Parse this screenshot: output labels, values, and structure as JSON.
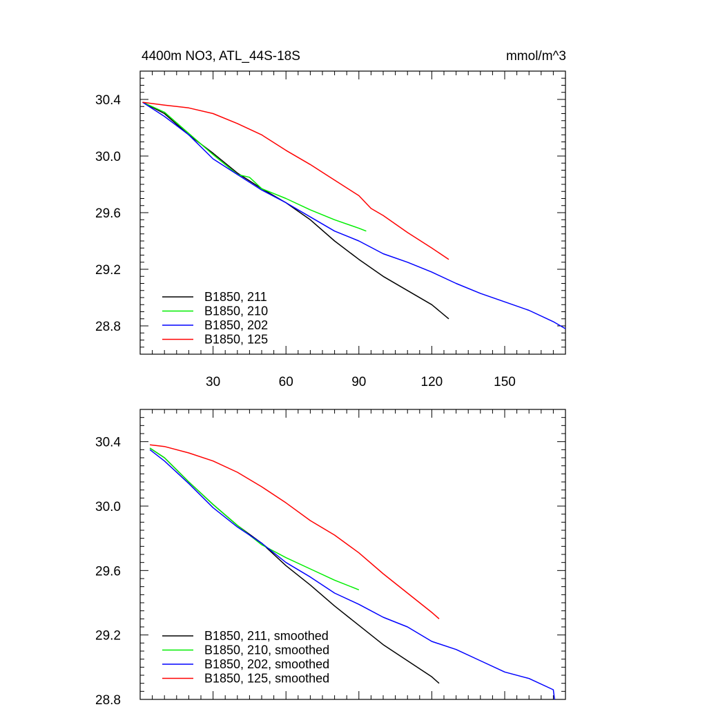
{
  "figure": {
    "title_left": "4400m NO3, ATL_44S-18S",
    "title_right": "mmol/m^3"
  },
  "chart_data": [
    {
      "type": "line",
      "title": "4400m NO3, ATL_44S-18S",
      "units": "mmol/m^3",
      "xlim": [
        0,
        175
      ],
      "ylim": [
        28.6,
        30.6
      ],
      "xticks": [
        30,
        60,
        90,
        120,
        150
      ],
      "yticks": [
        28.8,
        29.2,
        29.6,
        30.0,
        30.4
      ],
      "xtick_labels": [
        "30",
        "60",
        "90",
        "120",
        "150"
      ],
      "ytick_labels": [
        "28.8",
        "29.2",
        "29.6",
        "30.0",
        "30.4"
      ],
      "legend_position": "bottom-left",
      "series": [
        {
          "name": "B1850, 211",
          "color": "#000000",
          "x": [
            1,
            10,
            20,
            30,
            40,
            50,
            60,
            70,
            80,
            90,
            100,
            110,
            120,
            127
          ],
          "y": [
            30.38,
            30.3,
            30.15,
            30.02,
            29.88,
            29.77,
            29.67,
            29.55,
            29.4,
            29.27,
            29.15,
            29.05,
            28.95,
            28.85
          ]
        },
        {
          "name": "B1850, 210",
          "color": "#00ee00",
          "x": [
            1,
            10,
            20,
            30,
            40,
            45,
            50,
            60,
            70,
            80,
            90,
            93
          ],
          "y": [
            30.38,
            30.31,
            30.16,
            30.01,
            29.87,
            29.85,
            29.77,
            29.7,
            29.62,
            29.55,
            29.49,
            29.47
          ]
        },
        {
          "name": "B1850, 202",
          "color": "#0000ff",
          "x": [
            1,
            10,
            20,
            30,
            40,
            50,
            60,
            70,
            80,
            90,
            100,
            110,
            120,
            130,
            140,
            150,
            160,
            170,
            175
          ],
          "y": [
            30.38,
            30.28,
            30.15,
            29.98,
            29.87,
            29.76,
            29.67,
            29.57,
            29.47,
            29.4,
            29.31,
            29.25,
            29.18,
            29.1,
            29.03,
            28.97,
            28.91,
            28.83,
            28.78
          ]
        },
        {
          "name": "B1850, 125",
          "color": "#ff0000",
          "x": [
            1,
            10,
            20,
            30,
            40,
            50,
            60,
            70,
            80,
            90,
            95,
            100,
            110,
            120,
            127
          ],
          "y": [
            30.38,
            30.36,
            30.34,
            30.3,
            30.23,
            30.15,
            30.04,
            29.94,
            29.83,
            29.72,
            29.63,
            29.58,
            29.46,
            29.35,
            29.27
          ]
        }
      ]
    },
    {
      "type": "line",
      "title": "",
      "xlim": [
        0,
        175
      ],
      "ylim": [
        28.8,
        30.6
      ],
      "yticks": [
        28.8,
        29.2,
        29.6,
        30.0,
        30.4
      ],
      "ytick_labels": [
        "28.8",
        "29.2",
        "29.6",
        "30.0",
        "30.4"
      ],
      "legend_position": "bottom-left",
      "series": [
        {
          "name": "B1850, 211, smoothed",
          "color": "#000000",
          "x": [
            4,
            10,
            20,
            30,
            40,
            50,
            60,
            70,
            80,
            90,
            100,
            110,
            120,
            123
          ],
          "y": [
            30.36,
            30.3,
            30.15,
            30.01,
            29.88,
            29.77,
            29.63,
            29.51,
            29.38,
            29.26,
            29.14,
            29.04,
            28.94,
            28.9
          ]
        },
        {
          "name": "B1850, 210, smoothed",
          "color": "#00ee00",
          "x": [
            4,
            10,
            20,
            30,
            40,
            50,
            60,
            70,
            80,
            90
          ],
          "y": [
            30.36,
            30.3,
            30.15,
            30.01,
            29.88,
            29.76,
            29.68,
            29.61,
            29.54,
            29.48
          ]
        },
        {
          "name": "B1850, 202, smoothed",
          "color": "#0000ff",
          "x": [
            4,
            10,
            20,
            30,
            40,
            50,
            60,
            70,
            80,
            90,
            100,
            110,
            120,
            130,
            140,
            150,
            160,
            170,
            170.5
          ],
          "y": [
            30.35,
            30.28,
            30.14,
            29.99,
            29.87,
            29.77,
            29.65,
            29.56,
            29.46,
            29.39,
            29.31,
            29.25,
            29.16,
            29.11,
            29.04,
            28.97,
            28.93,
            28.86,
            28.8
          ]
        },
        {
          "name": "B1850, 125, smoothed",
          "color": "#ff0000",
          "x": [
            4,
            10,
            20,
            30,
            40,
            50,
            60,
            70,
            80,
            90,
            100,
            110,
            120,
            123
          ],
          "y": [
            30.38,
            30.37,
            30.33,
            30.28,
            30.21,
            30.12,
            30.02,
            29.91,
            29.82,
            29.71,
            29.58,
            29.46,
            29.34,
            29.3
          ]
        }
      ]
    }
  ]
}
